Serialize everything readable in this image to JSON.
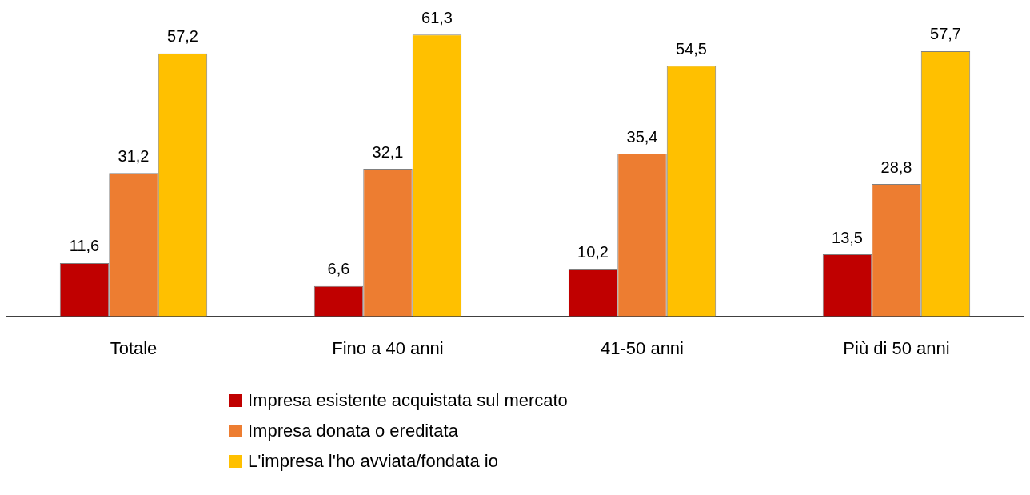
{
  "chart_data": {
    "type": "bar",
    "categories": [
      "Totale",
      "Fino a 40 anni",
      "41-50 anni",
      "Più di 50 anni"
    ],
    "legend": "bottom",
    "grid": false,
    "tick_labels": "x",
    "series": [
      {
        "name": "Impresa esistente acquistata sul mercato",
        "color": "#c00000",
        "values": [
          11.6,
          6.6,
          10.2,
          13.5
        ],
        "value_labels": [
          "11,6",
          "6,6",
          "10,2",
          "13,5"
        ]
      },
      {
        "name": "Impresa donata o ereditata",
        "color": "#ed7d31",
        "values": [
          31.2,
          32.1,
          35.4,
          28.8
        ],
        "value_labels": [
          "31,2",
          "32,1",
          "35,4",
          "28,8"
        ]
      },
      {
        "name": "L'impresa l'ho avviata/fondata io",
        "color": "#ffc000",
        "values": [
          57.2,
          61.3,
          54.5,
          57.7
        ],
        "value_labels": [
          "57,2",
          "61,3",
          "54,5",
          "57,7"
        ]
      }
    ]
  }
}
